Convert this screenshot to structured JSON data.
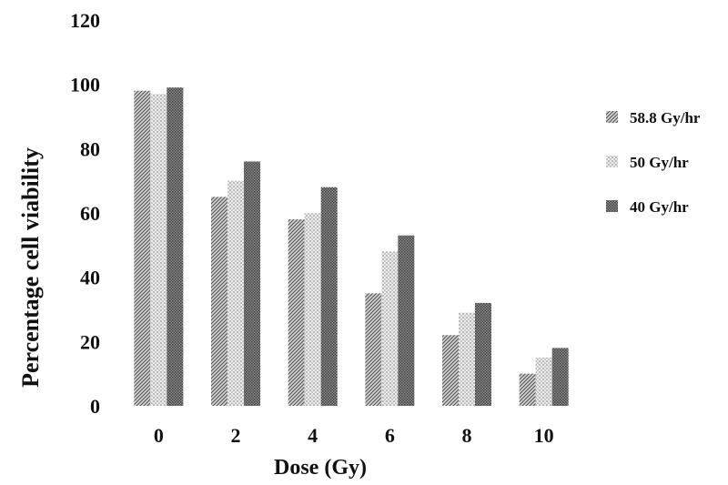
{
  "chart_data": {
    "type": "bar",
    "title": "",
    "xlabel": "Dose (Gy)",
    "ylabel": "Percentage  cell viability",
    "categories": [
      "0",
      "2",
      "4",
      "6",
      "8",
      "10"
    ],
    "ylim": [
      0,
      120
    ],
    "yticks": [
      0,
      20,
      40,
      60,
      80,
      100,
      120
    ],
    "grid": false,
    "legend_position": "right",
    "series": [
      {
        "name": "58.8 Gy/hr",
        "values": [
          98,
          65,
          58,
          35,
          22,
          10
        ],
        "pattern": "diagonal",
        "color": "#6e6e6e"
      },
      {
        "name": "50 Gy/hr",
        "values": [
          97,
          70,
          60,
          48,
          29,
          15
        ],
        "pattern": "dots",
        "color": "#9a9a9a"
      },
      {
        "name": "40 Gy/hr",
        "values": [
          99,
          76,
          68,
          53,
          32,
          18
        ],
        "pattern": "dense",
        "color": "#555555"
      }
    ]
  }
}
